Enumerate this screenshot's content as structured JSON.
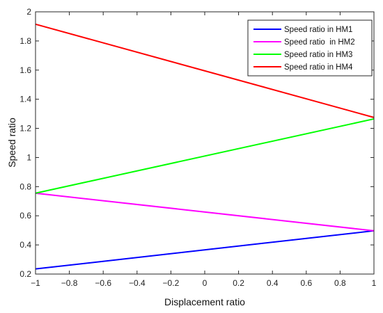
{
  "chart_data": {
    "type": "line",
    "xlabel": "Displacement ratio",
    "ylabel": "Speed ratio",
    "xlim": [
      -1,
      1
    ],
    "ylim": [
      0.2,
      2
    ],
    "x_ticks": [
      -1,
      -0.8,
      -0.6,
      -0.4,
      -0.2,
      0,
      0.2,
      0.4,
      0.6,
      0.8,
      1
    ],
    "y_ticks": [
      0.2,
      0.4,
      0.6,
      0.8,
      1,
      1.2,
      1.4,
      1.6,
      1.8,
      2
    ],
    "x_tick_labels": [
      "−1",
      "−0.8",
      "−0.6",
      "−0.4",
      "−0.2",
      "0",
      "0.2",
      "0.4",
      "0.6",
      "0.8",
      "1"
    ],
    "y_tick_labels": [
      "0.2",
      "0.4",
      "0.6",
      "0.8",
      "1",
      "1.2",
      "1.4",
      "1.6",
      "1.8",
      "2"
    ],
    "grid": false,
    "legend_position": "top-right",
    "series": [
      {
        "name": "Speed ratio in HM1",
        "color": "#0000ff",
        "x": [
          -1,
          1
        ],
        "y": [
          0.235,
          0.497
        ]
      },
      {
        "name": "Speed ratio  in HM2",
        "color": "#ff00ff",
        "x": [
          -1,
          1
        ],
        "y": [
          0.755,
          0.497
        ]
      },
      {
        "name": "Speed ratio in HM3",
        "color": "#00ff00",
        "x": [
          -1,
          1
        ],
        "y": [
          0.755,
          1.265
        ]
      },
      {
        "name": "Speed ratio in HM4",
        "color": "#ff0000",
        "x": [
          -1,
          1
        ],
        "y": [
          1.915,
          1.275
        ]
      }
    ]
  }
}
